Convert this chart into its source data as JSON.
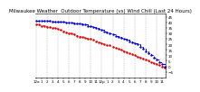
{
  "title": "Milwaukee Weather  Outdoor Temperature (vs) Wind Chill (Last 24 Hours)",
  "bg_color": "#ffffff",
  "grid_color": "#888888",
  "temp_color": "#0000dd",
  "windchill_color": "#dd0000",
  "ylim": [
    -10,
    48
  ],
  "yticks": [
    -5,
    0,
    5,
    10,
    15,
    20,
    25,
    30,
    35,
    40,
    45
  ],
  "n_points": 48,
  "temp_values": [
    42,
    42,
    42,
    42,
    42,
    42,
    41,
    41,
    41,
    41,
    41,
    40,
    40,
    40,
    39,
    39,
    39,
    38,
    38,
    37,
    37,
    36,
    35,
    34,
    33,
    32,
    31,
    30,
    29,
    28,
    27,
    26,
    25,
    24,
    23,
    22,
    21,
    20,
    18,
    16,
    14,
    12,
    10,
    8,
    6,
    4,
    2,
    0
  ],
  "windchill_values": [
    38,
    38,
    37,
    37,
    36,
    36,
    35,
    35,
    34,
    33,
    32,
    31,
    30,
    30,
    29,
    28,
    27,
    27,
    26,
    25,
    25,
    24,
    23,
    22,
    21,
    20,
    19,
    19,
    18,
    17,
    16,
    15,
    14,
    13,
    12,
    11,
    10,
    9,
    8,
    7,
    6,
    5,
    4,
    3,
    2,
    1,
    0,
    -1
  ],
  "x_tick_positions": [
    0,
    2,
    4,
    6,
    8,
    10,
    12,
    14,
    16,
    18,
    20,
    22,
    24,
    26,
    28,
    30,
    32,
    34,
    36,
    38,
    40,
    42,
    44,
    46
  ],
  "x_labels": [
    "12a",
    "1",
    "2",
    "3",
    "4",
    "5",
    "6",
    "7",
    "8",
    "9",
    "10",
    "11",
    "12p",
    "1",
    "2",
    "3",
    "4",
    "5",
    "6",
    "7",
    "8",
    "9",
    "10",
    "11"
  ],
  "vgrid_positions": [
    0,
    4,
    8,
    12,
    16,
    20,
    24,
    28,
    32,
    36,
    40,
    44,
    47
  ],
  "title_fontsize": 4.0,
  "tick_fontsize": 3.0,
  "ylabel_fontsize": 3.0,
  "linewidth": 0.7,
  "markersize": 1.5
}
